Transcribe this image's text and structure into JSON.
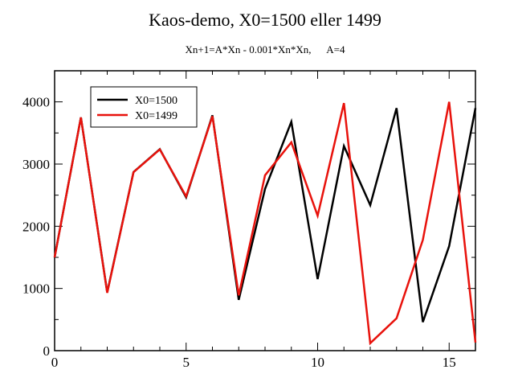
{
  "chart_data": {
    "type": "line",
    "title": "Kaos-demo, X0=1500 eller 1499",
    "subtitle": "Xn+1=A*Xn - 0.001*Xn*Xn,      A=4",
    "xlabel": "",
    "ylabel": "",
    "xlim": [
      0,
      16
    ],
    "ylim": [
      0,
      4500
    ],
    "x_ticks": [
      0,
      5,
      10,
      15
    ],
    "y_ticks": [
      0,
      1000,
      2000,
      3000,
      4000
    ],
    "grid": false,
    "legend_position": "top-left",
    "x": [
      0,
      1,
      2,
      3,
      4,
      5,
      6,
      7,
      8,
      9,
      10,
      11,
      12,
      13,
      14,
      15,
      16
    ],
    "series": [
      {
        "name": "X0=1500",
        "color": "#000000",
        "values": [
          1500,
          3750,
          938,
          2872,
          3240,
          2465,
          3784,
          817,
          2600,
          3680,
          1150,
          3290,
          2340,
          3900,
          460,
          1680,
          3900
        ]
      },
      {
        "name": "X0=1499",
        "color": "#e8120c",
        "values": [
          1499,
          3750,
          930,
          2870,
          3235,
          2480,
          3770,
          890,
          2820,
          3350,
          2170,
          3980,
          120,
          520,
          1780,
          4000,
          130
        ]
      }
    ]
  }
}
